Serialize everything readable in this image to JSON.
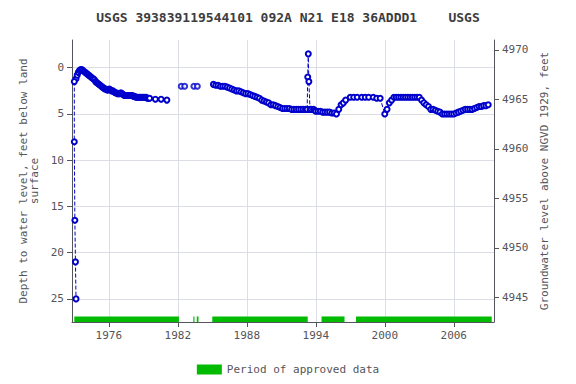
{
  "chart_data": {
    "type": "line",
    "title": "USGS 393839119544101 092A N21 E18 36ADDD1    USGS",
    "ylabel": "Depth to water level, feet below land\nsurface",
    "y2label": "Groundwater level above NGVD 1929, feet",
    "xlim": [
      1972.8,
      2009.5
    ],
    "xticks": [
      1976,
      1982,
      1988,
      1994,
      2000,
      2006
    ],
    "ylim": [
      27.5,
      -3.0
    ],
    "yticks": [
      0,
      5,
      10,
      15,
      20,
      25
    ],
    "y2lim": [
      4942.5,
      4971.0
    ],
    "y2ticks": [
      4945,
      4950,
      4955,
      4960,
      4965,
      4970
    ],
    "grid": true,
    "legend": "bottom",
    "series": [
      {
        "type": "line",
        "color": "#0000cc",
        "marker": "open_circle",
        "line_style": "dashed",
        "x": [
          1973.15,
          1973.25,
          1973.35,
          1973.45,
          1973.55,
          1973.65,
          1973.75,
          1973.85,
          1973.95,
          1974.05,
          1974.15,
          1974.25,
          1974.35,
          1974.45,
          1974.55,
          1974.65,
          1974.75,
          1974.85,
          1974.95,
          1975.05,
          1975.15,
          1975.25,
          1975.35,
          1975.45,
          1975.55,
          1975.65,
          1975.75,
          1975.85,
          1975.95,
          1976.05,
          1976.15,
          1976.25,
          1976.35,
          1976.45,
          1976.55,
          1976.65,
          1976.75,
          1976.85,
          1976.95,
          1977.05,
          1977.15,
          1977.25,
          1977.35,
          1977.45,
          1977.55,
          1977.65,
          1977.75,
          1977.85,
          1977.95,
          1978.05,
          1978.15,
          1978.25,
          1978.35,
          1978.45,
          1978.55,
          1978.65,
          1978.75,
          1978.85,
          1978.95,
          1979.05,
          1979.15,
          1979.25,
          1979.35,
          1979.45,
          1979.55,
          1980.05,
          1980.55,
          1981.05
        ],
        "values": [
          1.2,
          0.8,
          0.5,
          0.3,
          0.2,
          0.2,
          0.3,
          0.4,
          0.5,
          0.6,
          0.7,
          0.8,
          0.9,
          1.0,
          1.1,
          1.2,
          1.3,
          1.5,
          1.6,
          1.7,
          1.8,
          1.9,
          2.0,
          2.1,
          2.2,
          2.3,
          2.3,
          2.4,
          2.4,
          2.3,
          2.4,
          2.5,
          2.5,
          2.6,
          2.7,
          2.7,
          2.8,
          2.8,
          2.8,
          2.7,
          2.8,
          2.9,
          3.0,
          3.0,
          3.0,
          3.0,
          3.0,
          3.0,
          3.0,
          3.0,
          3.1,
          3.1,
          3.2,
          3.2,
          3.2,
          3.2,
          3.2,
          3.2,
          3.2,
          3.2,
          3.2,
          3.2,
          3.3,
          3.3,
          3.3,
          3.4,
          3.4,
          3.5
        ]
      },
      {
        "type": "line",
        "color": "#0000cc",
        "marker": "open_circle",
        "line_style": "dashed",
        "x": [
          1973.0,
          1973.0,
          1973.05,
          1973.1,
          1973.15
        ],
        "values": [
          1.5,
          8.0,
          16.5,
          21.0,
          25.0
        ]
      },
      {
        "type": "scatter",
        "color": "#0000cc",
        "marker": "open_circle",
        "x": [
          1982.3,
          1982.6,
          1983.4,
          1983.7
        ],
        "values": [
          2.0,
          2.0,
          2.0,
          2.0
        ]
      },
      {
        "type": "line",
        "color": "#0000cc",
        "marker": "open_circle",
        "line_style": "dashed",
        "x": [
          1985.1,
          1985.3,
          1985.5,
          1985.7,
          1985.9,
          1986.1,
          1986.3,
          1986.5,
          1986.7,
          1986.9,
          1987.1,
          1987.3,
          1987.5,
          1987.7,
          1987.9,
          1988.1,
          1988.3,
          1988.5,
          1988.7,
          1988.9,
          1989.1,
          1989.3,
          1989.5,
          1989.7,
          1989.9,
          1990.1,
          1990.3,
          1990.5,
          1990.7,
          1990.9,
          1991.1,
          1991.3,
          1991.5,
          1991.7,
          1991.9,
          1992.1,
          1992.3,
          1992.5,
          1992.7,
          1992.9,
          1993.1,
          1993.25
        ],
        "values": [
          1.8,
          1.9,
          1.9,
          2.0,
          2.0,
          2.0,
          2.1,
          2.2,
          2.3,
          2.4,
          2.5,
          2.5,
          2.6,
          2.7,
          2.8,
          2.8,
          2.9,
          3.0,
          3.1,
          3.2,
          3.3,
          3.5,
          3.6,
          3.7,
          3.8,
          4.0,
          4.0,
          4.1,
          4.2,
          4.3,
          4.4,
          4.4,
          4.4,
          4.4,
          4.5,
          4.5,
          4.5,
          4.5,
          4.5,
          4.5,
          4.5,
          4.5
        ]
      },
      {
        "type": "line",
        "color": "#0000cc",
        "marker": "open_circle",
        "line_style": "dashed",
        "x": [
          1993.25,
          1993.3,
          1993.35,
          1993.4,
          1993.5
        ],
        "values": [
          4.5,
          1.0,
          -1.5,
          1.5,
          4.5
        ]
      },
      {
        "type": "line",
        "color": "#0000cc",
        "marker": "open_circle",
        "line_style": "dashed",
        "x": [
          1993.6,
          1993.8,
          1993.9,
          1994.0,
          1994.2,
          1994.4,
          1994.6,
          1994.8,
          1995.0,
          1995.2,
          1995.4,
          1995.6,
          1995.8,
          1996.0,
          1996.2,
          1996.4,
          1996.6,
          1997.0,
          1997.3,
          1997.6,
          1998.0,
          1998.3,
          1998.6,
          1999.0,
          1999.3,
          1999.6,
          2000.0,
          2000.2,
          2000.4,
          2000.6,
          2000.8,
          2001.0,
          2001.2,
          2001.4,
          2001.6,
          2001.8,
          2002.0,
          2002.2,
          2002.4,
          2002.6,
          2002.8,
          2003.0,
          2003.2,
          2003.4,
          2003.6,
          2003.8,
          2004.0,
          2004.2,
          2004.4,
          2004.6,
          2004.8,
          2005.0,
          2005.2,
          2005.4,
          2005.6,
          2005.8,
          2006.0,
          2006.2,
          2006.4,
          2006.6,
          2006.8,
          2007.0,
          2007.2,
          2007.4,
          2007.6,
          2007.8,
          2008.0,
          2008.2,
          2008.4,
          2008.6,
          2008.8,
          2009.0
        ],
        "values": [
          4.5,
          4.5,
          4.6,
          4.7,
          4.7,
          4.7,
          4.8,
          4.8,
          4.8,
          4.8,
          4.9,
          4.9,
          5.0,
          4.5,
          4.0,
          3.8,
          3.5,
          3.2,
          3.2,
          3.2,
          3.2,
          3.2,
          3.2,
          3.2,
          3.3,
          3.3,
          5.0,
          4.5,
          3.8,
          3.5,
          3.2,
          3.2,
          3.2,
          3.2,
          3.2,
          3.2,
          3.2,
          3.2,
          3.2,
          3.2,
          3.2,
          3.2,
          3.5,
          3.8,
          4.0,
          4.2,
          4.5,
          4.5,
          4.6,
          4.7,
          4.8,
          5.0,
          5.0,
          5.0,
          5.0,
          5.0,
          5.0,
          4.9,
          4.8,
          4.7,
          4.6,
          4.5,
          4.5,
          4.5,
          4.5,
          4.4,
          4.3,
          4.2,
          4.2,
          4.1,
          4.1,
          4.0
        ]
      },
      {
        "name": "Period of approved data",
        "type": "bar",
        "orientation": "horizontal",
        "color": "#00bb00",
        "ranges": [
          [
            1973.0,
            1982.1
          ],
          [
            1983.35,
            1983.45
          ],
          [
            1983.65,
            1983.8
          ],
          [
            1985.0,
            1993.3
          ],
          [
            1994.5,
            1996.5
          ],
          [
            1997.5,
            2009.3
          ]
        ],
        "y": 27.2,
        "height": 0.6
      }
    ]
  }
}
